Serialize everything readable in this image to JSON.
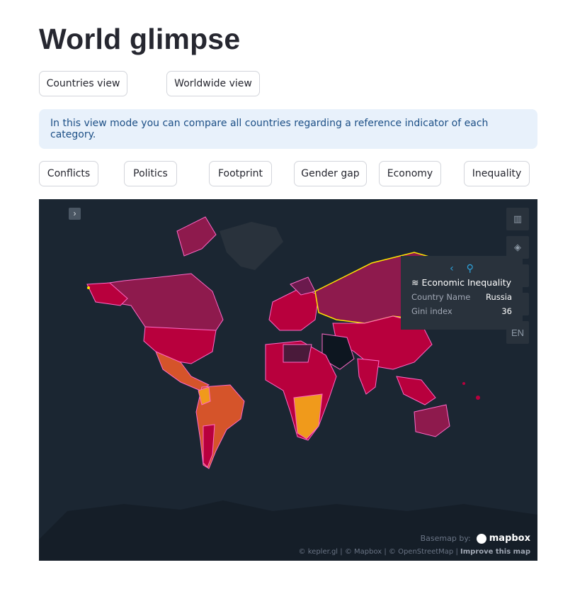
{
  "page": {
    "title": "World glimpse"
  },
  "views": {
    "countries_label": "Countries view",
    "worldwide_label": "Worldwide view"
  },
  "info": {
    "text": "In this view mode you can compare all countries regarding a reference indicator of each category."
  },
  "categories": [
    "Conflicts",
    "Politics",
    "Footprint",
    "Gender gap",
    "Economy",
    "Inequality"
  ],
  "map": {
    "side_toggle_icon": "chevron-right-icon",
    "controls": [
      "split-map-icon",
      "3d-cube-icon",
      "layer-icon",
      "draw-icon",
      "EN"
    ],
    "tooltip": {
      "title": "Economic Inequality",
      "rows": [
        {
          "label": "Country Name",
          "value": "Russia"
        },
        {
          "label": "Gini index",
          "value": "36"
        }
      ]
    },
    "basemap_label": "Basemap by:",
    "mapbox_label": "mapbox",
    "attribution": "© kepler.gl | © Mapbox | © OpenStreetMap |",
    "improve_label": "Improve this map",
    "colors": {
      "ocean": "#1b2632",
      "land_dark": "#29323c",
      "highlight": "#ffe600",
      "border": "#ff69c8"
    }
  }
}
